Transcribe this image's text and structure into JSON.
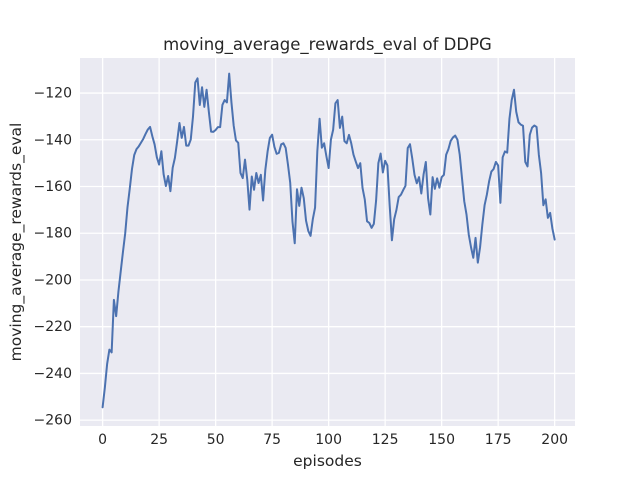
{
  "figure": {
    "title": "moving_average_rewards_eval of DDPG",
    "xlabel": "episodes",
    "ylabel": "moving_average_rewards_eval"
  },
  "colors": {
    "line": "#4C72B0",
    "plot_background": "#EAEAF2",
    "grid": "#FFFFFF",
    "text": "#262626",
    "figure_background": "#FFFFFF"
  },
  "chart_data": {
    "type": "line",
    "title": "moving_average_rewards_eval of DDPG",
    "xlabel": "episodes",
    "ylabel": "moving_average_rewards_eval",
    "legend": null,
    "grid": true,
    "x_start": 0,
    "x_step": 1,
    "xlim": [
      -10,
      209
    ],
    "ylim": [
      -262.5,
      -105
    ],
    "xticks": [
      0,
      25,
      50,
      75,
      100,
      125,
      150,
      175,
      200
    ],
    "yticks": [
      -120,
      -140,
      -160,
      -180,
      -200,
      -220,
      -240,
      -260
    ],
    "values": [
      -254.5,
      -246.0,
      -236.0,
      -229.8,
      -231.0,
      -208.5,
      -215.5,
      -205.0,
      -196.5,
      -188.0,
      -180.0,
      -169.0,
      -161.0,
      -152.5,
      -146.5,
      -144.0,
      -142.8,
      -141.2,
      -139.6,
      -137.5,
      -135.6,
      -134.5,
      -138.5,
      -142.0,
      -147.5,
      -150.6,
      -144.9,
      -154.8,
      -159.8,
      -155.5,
      -162.0,
      -152.0,
      -147.7,
      -140.6,
      -132.8,
      -139.2,
      -134.5,
      -142.5,
      -142.5,
      -139.9,
      -130.0,
      -115.5,
      -113.7,
      -125.1,
      -117.5,
      -125.9,
      -118.6,
      -128.0,
      -136.5,
      -136.6,
      -135.8,
      -134.6,
      -134.6,
      -125.1,
      -123.0,
      -124.0,
      -111.7,
      -124.0,
      -134.0,
      -140.3,
      -141.3,
      -154.2,
      -156.4,
      -148.5,
      -157.1,
      -169.9,
      -155.7,
      -161.4,
      -154.2,
      -158.5,
      -155.0,
      -166.0,
      -152.8,
      -145.0,
      -139.2,
      -137.8,
      -143.0,
      -146.0,
      -145.6,
      -142.0,
      -141.5,
      -143.5,
      -150.6,
      -158.4,
      -175.0,
      -184.3,
      -161.2,
      -168.3,
      -160.5,
      -165.0,
      -174.6,
      -179.0,
      -181.1,
      -174.0,
      -169.0,
      -144.9,
      -131.0,
      -143.4,
      -141.5,
      -147.0,
      -152.1,
      -140.0,
      -135.7,
      -124.4,
      -123.0,
      -134.9,
      -130.1,
      -140.6,
      -141.5,
      -137.9,
      -141.5,
      -146.4,
      -149.3,
      -152.1,
      -150.0,
      -160.6,
      -165.6,
      -174.9,
      -175.6,
      -177.7,
      -176.0,
      -166.0,
      -150.0,
      -145.9,
      -154.0,
      -149.0,
      -151.0,
      -168.0,
      -183.0,
      -174.0,
      -170.0,
      -164.5,
      -163.5,
      -161.5,
      -159.7,
      -143.5,
      -141.9,
      -148.0,
      -155.0,
      -158.6,
      -156.0,
      -163.0,
      -154.9,
      -149.5,
      -165.0,
      -172.0,
      -156.0,
      -161.0,
      -156.5,
      -160.5,
      -156.0,
      -155.0,
      -146.4,
      -144.0,
      -140.5,
      -139.0,
      -138.2,
      -140.0,
      -146.4,
      -156.4,
      -166.3,
      -172.0,
      -180.6,
      -186.0,
      -190.5,
      -182.0,
      -192.6,
      -186.0,
      -176.3,
      -168.0,
      -163.5,
      -157.8,
      -153.6,
      -152.5,
      -149.5,
      -151.0,
      -167.0,
      -147.5,
      -145.0,
      -145.5,
      -131.0,
      -123.0,
      -118.6,
      -128.0,
      -132.5,
      -133.5,
      -134.0,
      -149.5,
      -151.4,
      -137.9,
      -134.8,
      -133.9,
      -134.5,
      -146.4,
      -154.2,
      -168.0,
      -165.5,
      -173.4,
      -171.3,
      -178.0,
      -182.7
    ]
  }
}
